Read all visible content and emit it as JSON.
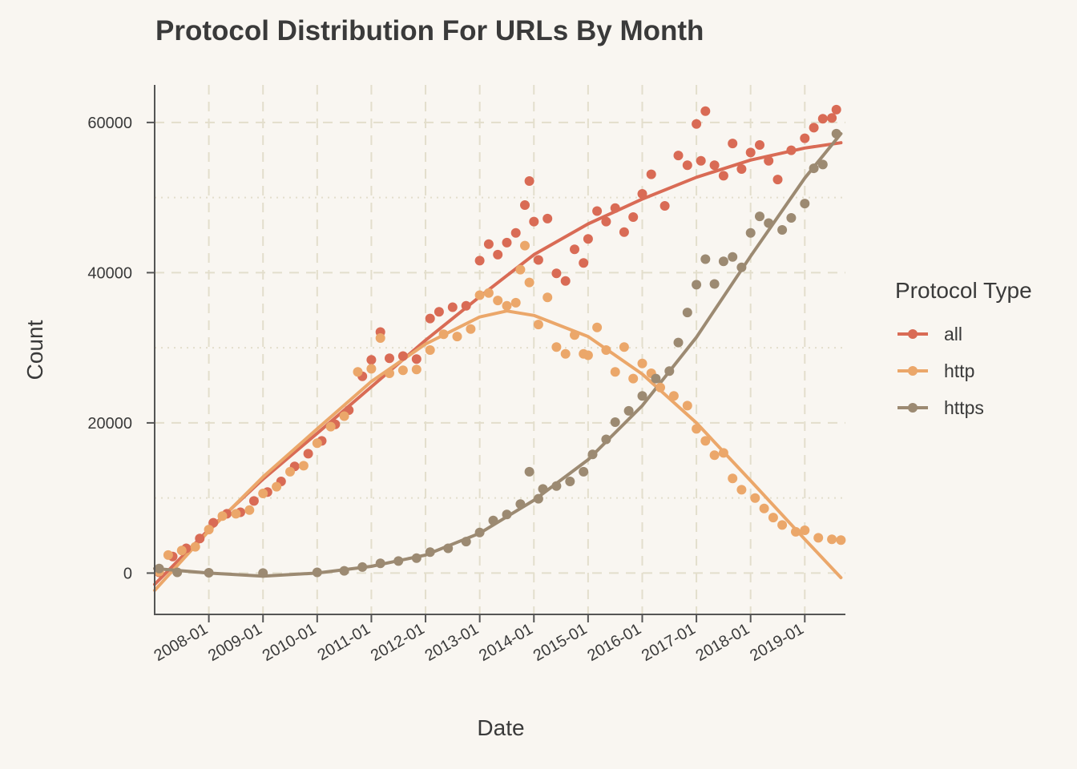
{
  "chart_data": {
    "type": "scatter",
    "title": "Protocol Distribution For URLs By Month",
    "xlabel": "Date",
    "ylabel": "Count",
    "x_range": [
      "2007-01",
      "2019-10"
    ],
    "ylim": [
      -5500,
      65000
    ],
    "y_ticks": [
      0,
      20000,
      40000,
      60000
    ],
    "x_ticks": [
      "2008-01",
      "2009-01",
      "2010-01",
      "2011-01",
      "2012-01",
      "2013-01",
      "2014-01",
      "2015-01",
      "2016-01",
      "2017-01",
      "2018-01",
      "2019-01"
    ],
    "grid": true,
    "trend_lines": true,
    "legend": {
      "title": "Protocol Type",
      "placement": "right"
    },
    "series": [
      {
        "name": "all",
        "color": "#d96b55",
        "points": [
          [
            "2007-02",
            100
          ],
          [
            "2007-05",
            2200
          ],
          [
            "2007-08",
            3300
          ],
          [
            "2007-11",
            4600
          ],
          [
            "2008-02",
            6700
          ],
          [
            "2008-05",
            7900
          ],
          [
            "2008-08",
            8100
          ],
          [
            "2008-11",
            9600
          ],
          [
            "2009-02",
            10800
          ],
          [
            "2009-05",
            12200
          ],
          [
            "2009-08",
            14200
          ],
          [
            "2009-11",
            15900
          ],
          [
            "2010-02",
            17600
          ],
          [
            "2010-05",
            19800
          ],
          [
            "2010-08",
            21700
          ],
          [
            "2010-11",
            26200
          ],
          [
            "2011-01",
            28400
          ],
          [
            "2011-03",
            32100
          ],
          [
            "2011-05",
            28600
          ],
          [
            "2011-08",
            28900
          ],
          [
            "2011-11",
            28500
          ],
          [
            "2012-02",
            33900
          ],
          [
            "2012-04",
            34800
          ],
          [
            "2012-07",
            35400
          ],
          [
            "2012-10",
            35600
          ],
          [
            "2013-01",
            41600
          ],
          [
            "2013-03",
            43800
          ],
          [
            "2013-05",
            42400
          ],
          [
            "2013-07",
            44000
          ],
          [
            "2013-09",
            45300
          ],
          [
            "2013-11",
            49000
          ],
          [
            "2013-12",
            52200
          ],
          [
            "2014-01",
            46800
          ],
          [
            "2014-02",
            41700
          ],
          [
            "2014-04",
            47200
          ],
          [
            "2014-06",
            39900
          ],
          [
            "2014-08",
            38900
          ],
          [
            "2014-10",
            43100
          ],
          [
            "2014-12",
            41300
          ],
          [
            "2015-01",
            44500
          ],
          [
            "2015-03",
            48200
          ],
          [
            "2015-05",
            46800
          ],
          [
            "2015-07",
            48600
          ],
          [
            "2015-09",
            45400
          ],
          [
            "2015-11",
            47400
          ],
          [
            "2016-01",
            50500
          ],
          [
            "2016-03",
            53100
          ],
          [
            "2016-06",
            48900
          ],
          [
            "2016-09",
            55600
          ],
          [
            "2016-11",
            54300
          ],
          [
            "2017-01",
            59800
          ],
          [
            "2017-02",
            54900
          ],
          [
            "2017-03",
            61500
          ],
          [
            "2017-05",
            54300
          ],
          [
            "2017-07",
            52900
          ],
          [
            "2017-09",
            57200
          ],
          [
            "2017-11",
            53800
          ],
          [
            "2018-01",
            56000
          ],
          [
            "2018-03",
            57000
          ],
          [
            "2018-05",
            54900
          ],
          [
            "2018-07",
            52400
          ],
          [
            "2018-10",
            56300
          ],
          [
            "2019-01",
            57900
          ],
          [
            "2019-03",
            59300
          ],
          [
            "2019-05",
            60500
          ],
          [
            "2019-07",
            60600
          ],
          [
            "2019-08",
            61700
          ]
        ],
        "trend": [
          [
            "2007-01",
            -1500
          ],
          [
            "2008-01",
            5800
          ],
          [
            "2009-01",
            12500
          ],
          [
            "2010-01",
            18600
          ],
          [
            "2011-01",
            24800
          ],
          [
            "2012-01",
            31000
          ],
          [
            "2013-01",
            36800
          ],
          [
            "2014-01",
            42400
          ],
          [
            "2015-01",
            46500
          ],
          [
            "2016-01",
            49800
          ],
          [
            "2017-01",
            52700
          ],
          [
            "2018-01",
            55000
          ],
          [
            "2019-01",
            56600
          ],
          [
            "2019-09",
            57300
          ]
        ]
      },
      {
        "name": "http",
        "color": "#eba76a",
        "points": [
          [
            "2007-02",
            200
          ],
          [
            "2007-04",
            2400
          ],
          [
            "2007-07",
            3000
          ],
          [
            "2007-10",
            3500
          ],
          [
            "2008-01",
            5800
          ],
          [
            "2008-04",
            7600
          ],
          [
            "2008-07",
            7900
          ],
          [
            "2008-10",
            8400
          ],
          [
            "2009-01",
            10600
          ],
          [
            "2009-04",
            11500
          ],
          [
            "2009-07",
            13500
          ],
          [
            "2009-10",
            14300
          ],
          [
            "2010-01",
            17300
          ],
          [
            "2010-04",
            19500
          ],
          [
            "2010-07",
            20900
          ],
          [
            "2010-10",
            26800
          ],
          [
            "2011-01",
            27200
          ],
          [
            "2011-03",
            31300
          ],
          [
            "2011-05",
            26600
          ],
          [
            "2011-08",
            27000
          ],
          [
            "2011-11",
            27100
          ],
          [
            "2012-02",
            29700
          ],
          [
            "2012-05",
            31800
          ],
          [
            "2012-08",
            31500
          ],
          [
            "2012-11",
            32500
          ],
          [
            "2013-01",
            37000
          ],
          [
            "2013-03",
            37300
          ],
          [
            "2013-05",
            36300
          ],
          [
            "2013-07",
            35600
          ],
          [
            "2013-09",
            36000
          ],
          [
            "2013-10",
            40400
          ],
          [
            "2013-11",
            43600
          ],
          [
            "2013-12",
            38700
          ],
          [
            "2014-02",
            33100
          ],
          [
            "2014-04",
            36700
          ],
          [
            "2014-06",
            30100
          ],
          [
            "2014-08",
            29200
          ],
          [
            "2014-10",
            31700
          ],
          [
            "2014-12",
            29200
          ],
          [
            "2015-01",
            29000
          ],
          [
            "2015-03",
            32700
          ],
          [
            "2015-05",
            29700
          ],
          [
            "2015-07",
            26800
          ],
          [
            "2015-09",
            30100
          ],
          [
            "2015-11",
            25900
          ],
          [
            "2016-01",
            27900
          ],
          [
            "2016-03",
            26600
          ],
          [
            "2016-05",
            24700
          ],
          [
            "2016-08",
            23600
          ],
          [
            "2016-11",
            22300
          ],
          [
            "2017-01",
            19200
          ],
          [
            "2017-03",
            17600
          ],
          [
            "2017-05",
            15700
          ],
          [
            "2017-07",
            16000
          ],
          [
            "2017-09",
            12600
          ],
          [
            "2017-11",
            11100
          ],
          [
            "2018-02",
            10000
          ],
          [
            "2018-04",
            8600
          ],
          [
            "2018-06",
            7400
          ],
          [
            "2018-08",
            6400
          ],
          [
            "2018-11",
            5500
          ],
          [
            "2019-01",
            5700
          ],
          [
            "2019-04",
            4700
          ],
          [
            "2019-07",
            4500
          ],
          [
            "2019-09",
            4400
          ]
        ],
        "trend": [
          [
            "2007-01",
            -2300
          ],
          [
            "2008-01",
            5600
          ],
          [
            "2009-01",
            12800
          ],
          [
            "2010-01",
            19200
          ],
          [
            "2011-01",
            25500
          ],
          [
            "2012-01",
            30500
          ],
          [
            "2013-01",
            34100
          ],
          [
            "2013-07",
            34900
          ],
          [
            "2014-01",
            34300
          ],
          [
            "2015-01",
            31500
          ],
          [
            "2016-01",
            26500
          ],
          [
            "2017-01",
            20000
          ],
          [
            "2018-01",
            12300
          ],
          [
            "2019-01",
            4500
          ],
          [
            "2019-09",
            -600
          ]
        ]
      },
      {
        "name": "https",
        "color": "#9c8a72",
        "points": [
          [
            "2007-02",
            600
          ],
          [
            "2007-06",
            100
          ],
          [
            "2008-01",
            50
          ],
          [
            "2009-01",
            0
          ],
          [
            "2010-01",
            100
          ],
          [
            "2010-07",
            300
          ],
          [
            "2010-11",
            800
          ],
          [
            "2011-03",
            1300
          ],
          [
            "2011-07",
            1600
          ],
          [
            "2011-11",
            2000
          ],
          [
            "2012-02",
            2800
          ],
          [
            "2012-06",
            3300
          ],
          [
            "2012-10",
            4200
          ],
          [
            "2013-01",
            5400
          ],
          [
            "2013-04",
            7000
          ],
          [
            "2013-07",
            7800
          ],
          [
            "2013-10",
            9200
          ],
          [
            "2013-12",
            13500
          ],
          [
            "2014-02",
            9900
          ],
          [
            "2014-03",
            11200
          ],
          [
            "2014-06",
            11600
          ],
          [
            "2014-09",
            12200
          ],
          [
            "2014-12",
            13500
          ],
          [
            "2015-02",
            15800
          ],
          [
            "2015-05",
            17800
          ],
          [
            "2015-07",
            20100
          ],
          [
            "2015-10",
            21600
          ],
          [
            "2016-01",
            23600
          ],
          [
            "2016-04",
            25900
          ],
          [
            "2016-07",
            26900
          ],
          [
            "2016-09",
            30700
          ],
          [
            "2016-11",
            34700
          ],
          [
            "2017-01",
            38400
          ],
          [
            "2017-03",
            41800
          ],
          [
            "2017-05",
            38500
          ],
          [
            "2017-07",
            41500
          ],
          [
            "2017-09",
            42100
          ],
          [
            "2017-11",
            40700
          ],
          [
            "2018-01",
            45300
          ],
          [
            "2018-03",
            47500
          ],
          [
            "2018-05",
            46600
          ],
          [
            "2018-08",
            45700
          ],
          [
            "2018-10",
            47300
          ],
          [
            "2019-01",
            49200
          ],
          [
            "2019-03",
            53900
          ],
          [
            "2019-05",
            54400
          ],
          [
            "2019-08",
            58500
          ]
        ],
        "trend": [
          [
            "2007-01",
            600
          ],
          [
            "2008-01",
            0
          ],
          [
            "2009-01",
            -400
          ],
          [
            "2010-01",
            0
          ],
          [
            "2011-01",
            900
          ],
          [
            "2012-01",
            2400
          ],
          [
            "2013-01",
            5300
          ],
          [
            "2014-01",
            9700
          ],
          [
            "2015-01",
            15100
          ],
          [
            "2016-01",
            22300
          ],
          [
            "2017-01",
            31400
          ],
          [
            "2018-01",
            42200
          ],
          [
            "2019-01",
            52600
          ],
          [
            "2019-09",
            58500
          ]
        ]
      }
    ]
  }
}
